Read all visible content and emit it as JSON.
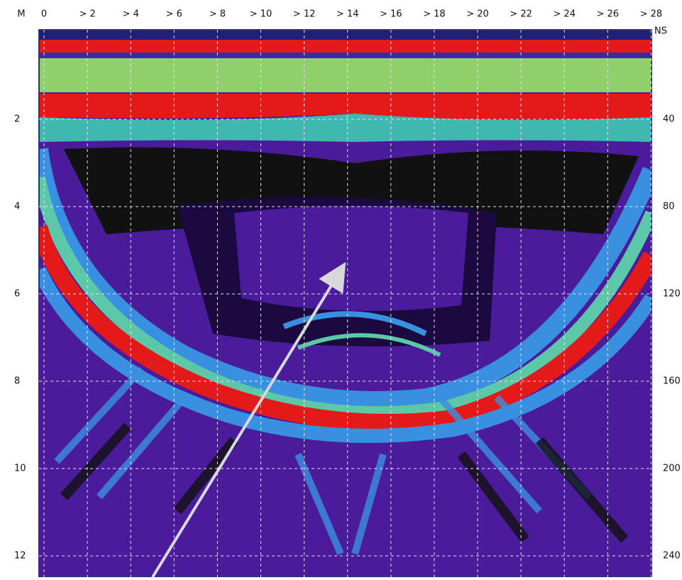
{
  "top_axis": {
    "labels": [
      "0",
      "> 2",
      "> 4",
      "> 6",
      "> 8",
      "> 10",
      "> 12",
      "> 14",
      "> 16",
      "> 18",
      "> 20",
      "> 22",
      "> 24",
      "> 26",
      "> 28"
    ]
  },
  "left_axis": {
    "unit": "M",
    "labels": [
      "2",
      "4",
      "6",
      "8",
      "10",
      "12"
    ]
  },
  "right_axis": {
    "unit": "NS",
    "labels": [
      "40",
      "80",
      "120",
      "160",
      "200",
      "240"
    ]
  }
}
